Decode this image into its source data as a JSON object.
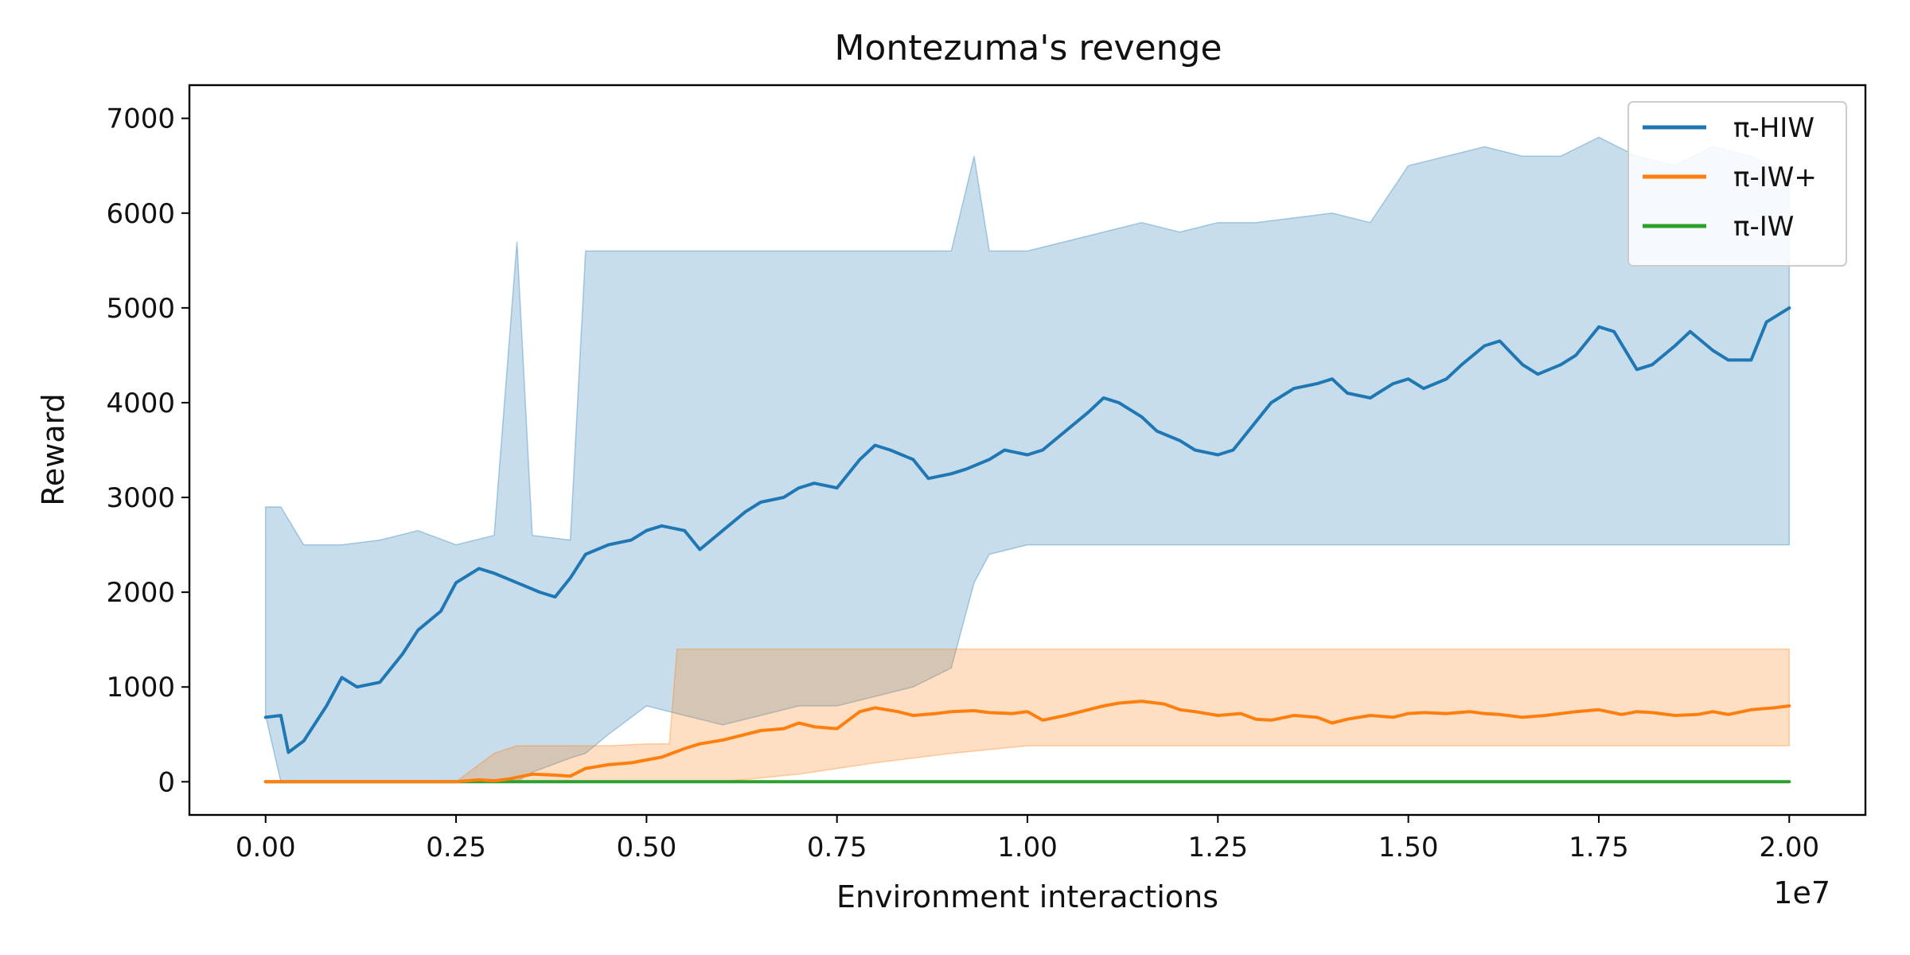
{
  "chart_data": {
    "type": "line",
    "title": "Montezuma's revenge",
    "xlabel": "Environment interactions",
    "ylabel": "Reward",
    "x_offset_label": "1e7",
    "xlim": [
      -0.1,
      2.1
    ],
    "ylim": [
      -350,
      7350
    ],
    "x_ticks": [
      0.0,
      0.25,
      0.5,
      0.75,
      1.0,
      1.25,
      1.5,
      1.75,
      2.0
    ],
    "x_tick_labels": [
      "0.00",
      "0.25",
      "0.50",
      "0.75",
      "1.00",
      "1.25",
      "1.50",
      "1.75",
      "2.00"
    ],
    "y_ticks": [
      0,
      1000,
      2000,
      3000,
      4000,
      5000,
      6000,
      7000
    ],
    "y_tick_labels": [
      "0",
      "1000",
      "2000",
      "3000",
      "4000",
      "5000",
      "6000",
      "7000"
    ],
    "legend_position": "top-right",
    "series": [
      {
        "name": "π-HIW",
        "color": "#1f77b4",
        "x": [
          0.0,
          0.02,
          0.03,
          0.05,
          0.08,
          0.1,
          0.12,
          0.15,
          0.18,
          0.2,
          0.23,
          0.25,
          0.28,
          0.3,
          0.33,
          0.36,
          0.38,
          0.4,
          0.42,
          0.45,
          0.48,
          0.5,
          0.52,
          0.55,
          0.57,
          0.6,
          0.63,
          0.65,
          0.68,
          0.7,
          0.72,
          0.75,
          0.78,
          0.8,
          0.82,
          0.85,
          0.87,
          0.9,
          0.92,
          0.95,
          0.97,
          1.0,
          1.02,
          1.05,
          1.08,
          1.1,
          1.12,
          1.15,
          1.17,
          1.2,
          1.22,
          1.25,
          1.27,
          1.3,
          1.32,
          1.35,
          1.38,
          1.4,
          1.42,
          1.45,
          1.48,
          1.5,
          1.52,
          1.55,
          1.57,
          1.6,
          1.62,
          1.65,
          1.67,
          1.7,
          1.72,
          1.75,
          1.77,
          1.8,
          1.82,
          1.85,
          1.87,
          1.9,
          1.92,
          1.95,
          1.97,
          2.0
        ],
        "values": [
          680,
          700,
          310,
          430,
          800,
          1100,
          1000,
          1050,
          1350,
          1600,
          1800,
          2100,
          2250,
          2200,
          2100,
          2000,
          1950,
          2150,
          2400,
          2500,
          2550,
          2650,
          2700,
          2650,
          2450,
          2650,
          2850,
          2950,
          3000,
          3100,
          3150,
          3100,
          3400,
          3550,
          3500,
          3400,
          3200,
          3250,
          3300,
          3400,
          3500,
          3450,
          3500,
          3700,
          3900,
          4050,
          4000,
          3850,
          3700,
          3600,
          3500,
          3450,
          3500,
          3800,
          4000,
          4150,
          4200,
          4250,
          4100,
          4050,
          4200,
          4250,
          4150,
          4250,
          4400,
          4600,
          4650,
          4400,
          4300,
          4400,
          4500,
          4800,
          4750,
          4350,
          4400,
          4600,
          4750,
          4550,
          4450,
          4450,
          4850,
          5000
        ]
      },
      {
        "name": "π-IW+",
        "color": "#ff7f0e",
        "x": [
          0.0,
          0.05,
          0.1,
          0.15,
          0.2,
          0.25,
          0.28,
          0.3,
          0.32,
          0.35,
          0.38,
          0.4,
          0.42,
          0.45,
          0.48,
          0.5,
          0.52,
          0.55,
          0.57,
          0.6,
          0.62,
          0.65,
          0.68,
          0.7,
          0.72,
          0.75,
          0.78,
          0.8,
          0.83,
          0.85,
          0.88,
          0.9,
          0.93,
          0.95,
          0.98,
          1.0,
          1.02,
          1.05,
          1.08,
          1.1,
          1.12,
          1.15,
          1.18,
          1.2,
          1.22,
          1.25,
          1.28,
          1.3,
          1.32,
          1.35,
          1.38,
          1.4,
          1.42,
          1.45,
          1.48,
          1.5,
          1.52,
          1.55,
          1.58,
          1.6,
          1.62,
          1.65,
          1.68,
          1.7,
          1.72,
          1.75,
          1.78,
          1.8,
          1.82,
          1.85,
          1.88,
          1.9,
          1.92,
          1.95,
          1.98,
          2.0
        ],
        "values": [
          0,
          0,
          0,
          0,
          0,
          0,
          20,
          10,
          30,
          80,
          70,
          60,
          140,
          180,
          200,
          230,
          260,
          350,
          400,
          440,
          480,
          540,
          560,
          620,
          580,
          560,
          740,
          780,
          740,
          700,
          720,
          740,
          750,
          730,
          720,
          740,
          650,
          700,
          760,
          800,
          830,
          850,
          820,
          760,
          740,
          700,
          720,
          660,
          650,
          700,
          680,
          620,
          660,
          700,
          680,
          720,
          730,
          720,
          740,
          720,
          710,
          680,
          700,
          720,
          740,
          760,
          710,
          740,
          730,
          700,
          710,
          740,
          710,
          760,
          780,
          800
        ]
      },
      {
        "name": "π-IW",
        "color": "#2ca02c",
        "x": [
          0.0,
          0.5,
          1.0,
          1.5,
          2.0
        ],
        "values": [
          0,
          0,
          0,
          0,
          0
        ]
      }
    ],
    "bands": [
      {
        "series": "π-HIW",
        "x": [
          0.0,
          0.02,
          0.05,
          0.1,
          0.15,
          0.2,
          0.25,
          0.3,
          0.33,
          0.35,
          0.4,
          0.42,
          0.45,
          0.5,
          0.55,
          0.6,
          0.65,
          0.7,
          0.75,
          0.8,
          0.85,
          0.9,
          0.93,
          0.95,
          1.0,
          1.05,
          1.1,
          1.15,
          1.2,
          1.25,
          1.3,
          1.35,
          1.4,
          1.45,
          1.5,
          1.55,
          1.6,
          1.65,
          1.7,
          1.75,
          1.8,
          1.85,
          1.9,
          1.95,
          2.0
        ],
        "upper": [
          2900,
          2900,
          2500,
          2500,
          2550,
          2650,
          2500,
          2600,
          5700,
          2600,
          2550,
          5600,
          5600,
          5600,
          5600,
          5600,
          5600,
          5600,
          5600,
          5600,
          5600,
          5600,
          6600,
          5600,
          5600,
          5700,
          5800,
          5900,
          5800,
          5900,
          5900,
          5950,
          6000,
          5900,
          6500,
          6600,
          6700,
          6600,
          6600,
          6800,
          6600,
          6500,
          6700,
          6600,
          6400
        ],
        "lower": [
          700,
          0,
          0,
          0,
          0,
          0,
          0,
          0,
          0,
          100,
          250,
          300,
          500,
          800,
          700,
          600,
          700,
          800,
          800,
          900,
          1000,
          1200,
          2100,
          2400,
          2500,
          2500,
          2500,
          2500,
          2500,
          2500,
          2500,
          2500,
          2500,
          2500,
          2500,
          2500,
          2500,
          2500,
          2500,
          2500,
          2500,
          2500,
          2500,
          2500,
          2500
        ]
      },
      {
        "series": "π-IW+",
        "x": [
          0.0,
          0.25,
          0.3,
          0.33,
          0.4,
          0.45,
          0.5,
          0.53,
          0.54,
          0.6,
          0.7,
          0.8,
          0.9,
          1.0,
          1.2,
          1.4,
          1.6,
          1.8,
          2.0
        ],
        "upper": [
          0,
          0,
          300,
          380,
          380,
          380,
          400,
          400,
          1400,
          1400,
          1400,
          1400,
          1400,
          1400,
          1400,
          1400,
          1400,
          1400,
          1400
        ],
        "lower": [
          0,
          0,
          0,
          0,
          0,
          0,
          0,
          0,
          0,
          0,
          80,
          200,
          300,
          380,
          380,
          380,
          380,
          380,
          380
        ]
      }
    ]
  }
}
